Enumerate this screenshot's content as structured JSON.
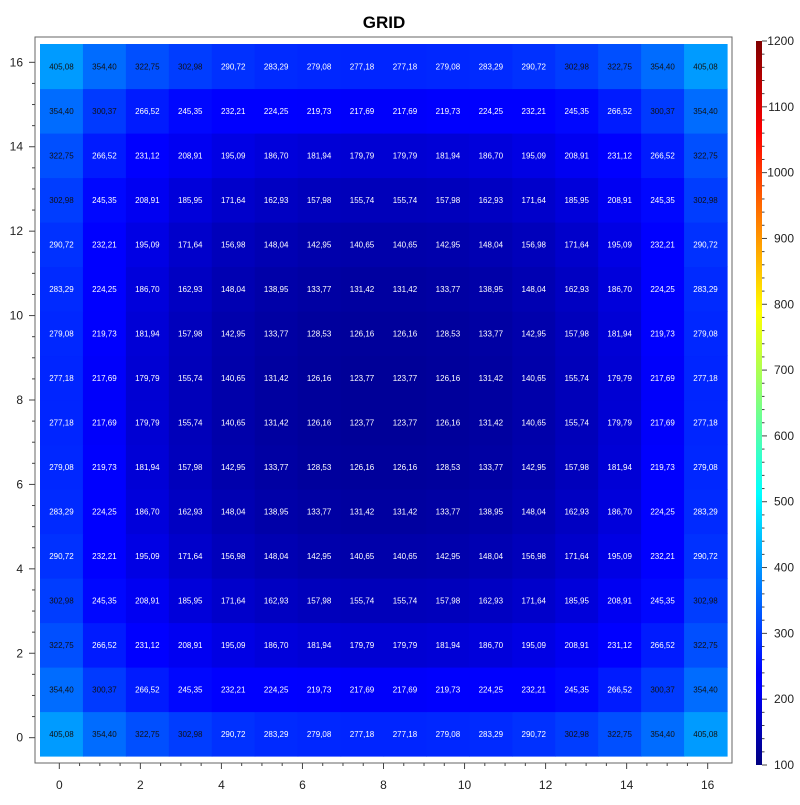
{
  "chart_data": {
    "type": "heatmap",
    "title": "GRID",
    "xlabel": "",
    "ylabel": "",
    "x": [
      0,
      1,
      2,
      3,
      4,
      5,
      6,
      7,
      8,
      9,
      10,
      11,
      12,
      13,
      14,
      15,
      16
    ],
    "y": [
      0,
      1,
      2,
      3,
      4,
      5,
      6,
      7,
      8,
      9,
      10,
      11,
      12,
      13,
      14,
      15,
      16
    ],
    "xlim": [
      -0.6,
      16.6
    ],
    "ylim": [
      -0.6,
      16.6
    ],
    "xticks": [
      0,
      2,
      4,
      6,
      8,
      10,
      12,
      14,
      16
    ],
    "yticks": [
      0,
      2,
      4,
      6,
      8,
      10,
      12,
      14,
      16
    ],
    "colorbar": {
      "min": 100,
      "max": 1200,
      "ticks": [
        100,
        200,
        300,
        400,
        500,
        600,
        700,
        800,
        900,
        1000,
        1100,
        1200
      ],
      "colormap": "jet"
    },
    "values": [
      [
        "405,08",
        "354,40",
        "322,75",
        "302,98",
        "290,72",
        "283,29",
        "279,08",
        "277,18",
        "277,18",
        "279,08",
        "283,29",
        "290,72",
        "302,98",
        "322,75",
        "354,40",
        "405,08"
      ],
      [
        "354,40",
        "300,37",
        "266,52",
        "245,35",
        "232,21",
        "224,25",
        "219,73",
        "217,69",
        "217,69",
        "219,73",
        "224,25",
        "232,21",
        "245,35",
        "266,52",
        "300,37",
        "354,40"
      ],
      [
        "322,75",
        "266,52",
        "231,12",
        "208,91",
        "195,09",
        "186,70",
        "181,94",
        "179,79",
        "179,79",
        "181,94",
        "186,70",
        "195,09",
        "208,91",
        "231,12",
        "266,52",
        "322,75"
      ],
      [
        "302,98",
        "245,35",
        "208,91",
        "185,95",
        "171,64",
        "162,93",
        "157,98",
        "155,74",
        "155,74",
        "157,98",
        "162,93",
        "171,64",
        "185,95",
        "208,91",
        "245,35",
        "302,98"
      ],
      [
        "290,72",
        "232,21",
        "195,09",
        "171,64",
        "156,98",
        "148,04",
        "142,95",
        "140,65",
        "140,65",
        "142,95",
        "148,04",
        "156,98",
        "171,64",
        "195,09",
        "232,21",
        "290,72"
      ],
      [
        "283,29",
        "224,25",
        "186,70",
        "162,93",
        "148,04",
        "138,95",
        "133,77",
        "131,42",
        "131,42",
        "133,77",
        "138,95",
        "148,04",
        "162,93",
        "186,70",
        "224,25",
        "283,29"
      ],
      [
        "279,08",
        "219,73",
        "181,94",
        "157,98",
        "142,95",
        "133,77",
        "128,53",
        "126,16",
        "126,16",
        "128,53",
        "133,77",
        "142,95",
        "157,98",
        "181,94",
        "219,73",
        "279,08"
      ],
      [
        "277,18",
        "217,69",
        "179,79",
        "155,74",
        "140,65",
        "131,42",
        "126,16",
        "123,77",
        "123,77",
        "126,16",
        "131,42",
        "140,65",
        "155,74",
        "179,79",
        "217,69",
        "277,18"
      ],
      [
        "277,18",
        "217,69",
        "179,79",
        "155,74",
        "140,65",
        "131,42",
        "126,16",
        "123,77",
        "123,77",
        "126,16",
        "131,42",
        "140,65",
        "155,74",
        "179,79",
        "217,69",
        "277,18"
      ],
      [
        "279,08",
        "219,73",
        "181,94",
        "157,98",
        "142,95",
        "133,77",
        "128,53",
        "126,16",
        "126,16",
        "128,53",
        "133,77",
        "142,95",
        "157,98",
        "181,94",
        "219,73",
        "279,08"
      ],
      [
        "283,29",
        "224,25",
        "186,70",
        "162,93",
        "148,04",
        "138,95",
        "133,77",
        "131,42",
        "131,42",
        "133,77",
        "138,95",
        "148,04",
        "162,93",
        "186,70",
        "224,25",
        "283,29"
      ],
      [
        "290,72",
        "232,21",
        "195,09",
        "171,64",
        "156,98",
        "148,04",
        "142,95",
        "140,65",
        "140,65",
        "142,95",
        "148,04",
        "156,98",
        "171,64",
        "195,09",
        "232,21",
        "290,72"
      ],
      [
        "302,98",
        "245,35",
        "208,91",
        "185,95",
        "171,64",
        "162,93",
        "157,98",
        "155,74",
        "155,74",
        "157,98",
        "162,93",
        "171,64",
        "185,95",
        "208,91",
        "245,35",
        "302,98"
      ],
      [
        "322,75",
        "266,52",
        "231,12",
        "208,91",
        "195,09",
        "186,70",
        "181,94",
        "179,79",
        "179,79",
        "181,94",
        "186,70",
        "195,09",
        "208,91",
        "231,12",
        "266,52",
        "322,75"
      ],
      [
        "354,40",
        "300,37",
        "266,52",
        "245,35",
        "232,21",
        "224,25",
        "219,73",
        "217,69",
        "217,69",
        "219,73",
        "224,25",
        "232,21",
        "245,35",
        "266,52",
        "300,37",
        "354,40"
      ],
      [
        "405,08",
        "354,40",
        "322,75",
        "302,98",
        "290,72",
        "283,29",
        "279,08",
        "277,18",
        "277,18",
        "279,08",
        "283,29",
        "290,72",
        "302,98",
        "322,75",
        "354,40",
        "405,08"
      ]
    ]
  }
}
